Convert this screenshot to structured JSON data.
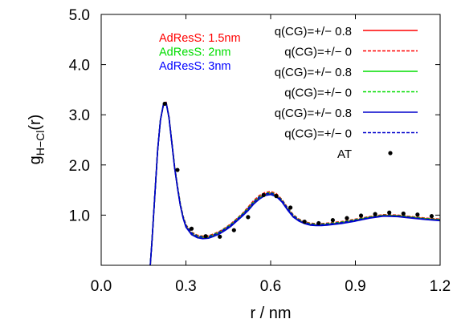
{
  "chart_data": {
    "type": "line",
    "xlabel": "r / nm",
    "ylabel_main": "g",
    "ylabel_sub": "H−Cl",
    "ylabel_tail": "(r)",
    "xlim": [
      0.0,
      1.2
    ],
    "ylim": [
      0.0,
      5.0
    ],
    "xticks": [
      {
        "v": 0.0,
        "label": "0.0"
      },
      {
        "v": 0.3,
        "label": "0.3"
      },
      {
        "v": 0.6,
        "label": "0.6"
      },
      {
        "v": 0.9,
        "label": "0.9"
      },
      {
        "v": 1.2,
        "label": "1.2"
      }
    ],
    "yticks": [
      {
        "v": 1.0,
        "label": "1.0"
      },
      {
        "v": 2.0,
        "label": "2.0"
      },
      {
        "v": 3.0,
        "label": "3.0"
      },
      {
        "v": 4.0,
        "label": "4.0"
      },
      {
        "v": 5.0,
        "label": "5.0"
      }
    ],
    "grid": false,
    "annotations": [
      {
        "text": "AdResS: 1.5nm",
        "color": "#ff0000"
      },
      {
        "text": "AdResS: 2nm",
        "color": "#00dd00"
      },
      {
        "text": "AdResS: 3nm",
        "color": "#0000ff"
      }
    ],
    "legend_position": "top-right",
    "x": [
      0.17,
      0.18,
      0.19,
      0.2,
      0.21,
      0.22,
      0.23,
      0.24,
      0.25,
      0.26,
      0.27,
      0.28,
      0.29,
      0.3,
      0.32,
      0.34,
      0.36,
      0.38,
      0.4,
      0.42,
      0.44,
      0.46,
      0.48,
      0.5,
      0.52,
      0.54,
      0.56,
      0.58,
      0.6,
      0.62,
      0.64,
      0.66,
      0.68,
      0.7,
      0.72,
      0.74,
      0.76,
      0.78,
      0.8,
      0.85,
      0.9,
      0.95,
      1.0,
      1.05,
      1.1,
      1.15,
      1.2
    ],
    "series": [
      {
        "name": "q(CG)=+/− 0.8",
        "color": "#ff0000",
        "style": "solid",
        "values": [
          -0.3,
          0.5,
          1.4,
          2.3,
          2.9,
          3.2,
          3.25,
          2.95,
          2.45,
          1.95,
          1.55,
          1.2,
          0.95,
          0.78,
          0.63,
          0.57,
          0.55,
          0.56,
          0.6,
          0.65,
          0.72,
          0.8,
          0.9,
          1.0,
          1.12,
          1.25,
          1.35,
          1.42,
          1.44,
          1.4,
          1.28,
          1.12,
          0.98,
          0.9,
          0.85,
          0.82,
          0.81,
          0.81,
          0.82,
          0.85,
          0.9,
          0.96,
          1.0,
          0.99,
          0.96,
          0.93,
          0.91
        ]
      },
      {
        "name": "q(CG)=+/− 0",
        "color": "#ff0000",
        "style": "dashed",
        "values": [
          -0.3,
          0.5,
          1.4,
          2.3,
          2.9,
          3.18,
          3.24,
          2.96,
          2.47,
          1.98,
          1.58,
          1.23,
          0.98,
          0.81,
          0.66,
          0.6,
          0.58,
          0.59,
          0.63,
          0.68,
          0.75,
          0.83,
          0.93,
          1.03,
          1.16,
          1.29,
          1.39,
          1.45,
          1.47,
          1.43,
          1.31,
          1.15,
          1.01,
          0.92,
          0.87,
          0.84,
          0.83,
          0.83,
          0.84,
          0.87,
          0.92,
          0.97,
          1.01,
          1.0,
          0.97,
          0.94,
          0.92
        ]
      },
      {
        "name": "q(CG)=+/− 0.8",
        "color": "#00dd00",
        "style": "solid",
        "values": [
          -0.3,
          0.5,
          1.4,
          2.3,
          2.9,
          3.2,
          3.24,
          2.94,
          2.45,
          1.95,
          1.55,
          1.2,
          0.95,
          0.77,
          0.62,
          0.56,
          0.54,
          0.55,
          0.59,
          0.64,
          0.71,
          0.79,
          0.89,
          0.99,
          1.1,
          1.23,
          1.33,
          1.4,
          1.42,
          1.38,
          1.27,
          1.11,
          0.97,
          0.89,
          0.84,
          0.81,
          0.8,
          0.8,
          0.81,
          0.84,
          0.89,
          0.95,
          0.99,
          0.98,
          0.95,
          0.92,
          0.9
        ]
      },
      {
        "name": "q(CG)=+/− 0",
        "color": "#00dd00",
        "style": "dashed",
        "values": [
          -0.3,
          0.5,
          1.4,
          2.3,
          2.9,
          3.19,
          3.24,
          2.95,
          2.46,
          1.97,
          1.57,
          1.22,
          0.97,
          0.8,
          0.65,
          0.59,
          0.57,
          0.58,
          0.62,
          0.67,
          0.74,
          0.82,
          0.92,
          1.02,
          1.14,
          1.27,
          1.37,
          1.43,
          1.45,
          1.41,
          1.3,
          1.14,
          1.0,
          0.91,
          0.86,
          0.83,
          0.82,
          0.82,
          0.83,
          0.86,
          0.91,
          0.96,
          1.0,
          0.99,
          0.96,
          0.93,
          0.91
        ]
      },
      {
        "name": "q(CG)=+/− 0.8",
        "color": "#0000cc",
        "style": "solid",
        "values": [
          -0.3,
          0.5,
          1.4,
          2.3,
          2.9,
          3.2,
          3.24,
          2.94,
          2.44,
          1.94,
          1.54,
          1.19,
          0.94,
          0.76,
          0.61,
          0.55,
          0.53,
          0.54,
          0.58,
          0.63,
          0.7,
          0.78,
          0.88,
          0.98,
          1.09,
          1.22,
          1.32,
          1.39,
          1.41,
          1.37,
          1.26,
          1.1,
          0.96,
          0.88,
          0.83,
          0.8,
          0.79,
          0.79,
          0.8,
          0.83,
          0.88,
          0.94,
          0.98,
          0.97,
          0.94,
          0.91,
          0.89
        ]
      },
      {
        "name": "q(CG)=+/− 0",
        "color": "#0000cc",
        "style": "dashed",
        "values": [
          -0.3,
          0.5,
          1.4,
          2.3,
          2.9,
          3.19,
          3.24,
          2.95,
          2.46,
          1.96,
          1.56,
          1.21,
          0.96,
          0.79,
          0.64,
          0.58,
          0.56,
          0.57,
          0.61,
          0.66,
          0.73,
          0.81,
          0.91,
          1.01,
          1.13,
          1.26,
          1.36,
          1.42,
          1.44,
          1.4,
          1.29,
          1.13,
          0.99,
          0.9,
          0.85,
          0.82,
          0.81,
          0.81,
          0.82,
          0.85,
          0.9,
          0.95,
          0.99,
          0.98,
          0.95,
          0.92,
          0.9
        ]
      }
    ],
    "at_series": {
      "name": "AT",
      "color": "#000000",
      "points": [
        {
          "x": 0.225,
          "y": 3.22
        },
        {
          "x": 0.27,
          "y": 1.9
        },
        {
          "x": 0.32,
          "y": 0.73
        },
        {
          "x": 0.37,
          "y": 0.58
        },
        {
          "x": 0.42,
          "y": 0.57
        },
        {
          "x": 0.47,
          "y": 0.7
        },
        {
          "x": 0.52,
          "y": 0.96
        },
        {
          "x": 0.575,
          "y": 1.4
        },
        {
          "x": 0.62,
          "y": 1.38
        },
        {
          "x": 0.67,
          "y": 1.15
        },
        {
          "x": 0.72,
          "y": 0.87
        },
        {
          "x": 0.77,
          "y": 0.84
        },
        {
          "x": 0.82,
          "y": 0.9
        },
        {
          "x": 0.87,
          "y": 0.94
        },
        {
          "x": 0.92,
          "y": 0.99
        },
        {
          "x": 0.97,
          "y": 1.02
        },
        {
          "x": 1.02,
          "y": 1.05
        },
        {
          "x": 1.07,
          "y": 1.03
        },
        {
          "x": 1.12,
          "y": 1.01
        },
        {
          "x": 1.17,
          "y": 0.98
        }
      ]
    }
  }
}
